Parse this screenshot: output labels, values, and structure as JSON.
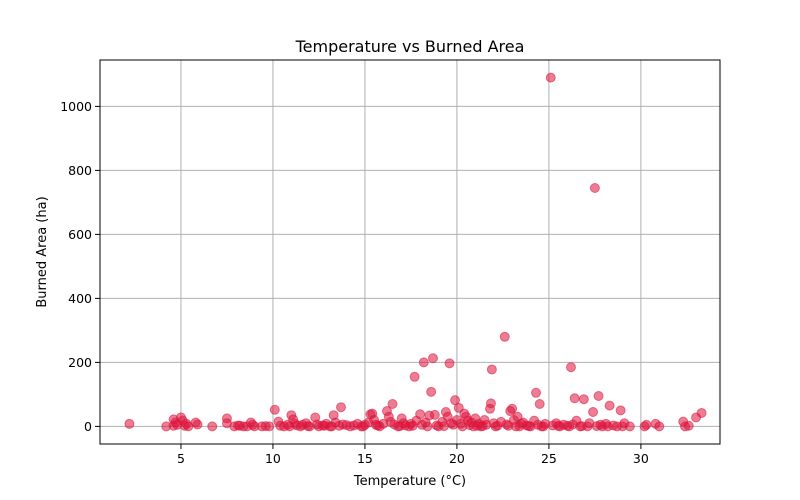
{
  "chart_data": {
    "type": "scatter",
    "title": "Temperature vs Burned Area",
    "xlabel": "Temperature (°C)",
    "ylabel": "Burned Area (ha)",
    "xlim": [
      0.6,
      34.3
    ],
    "ylim": [
      -55,
      1145
    ],
    "x_ticks": [
      5,
      10,
      15,
      20,
      25,
      30
    ],
    "y_ticks": [
      0,
      200,
      400,
      600,
      800,
      1000
    ],
    "grid": true,
    "legend": "none",
    "color": "#dc143c",
    "alpha": 0.55,
    "points": [
      [
        2.2,
        8
      ],
      [
        4.2,
        0
      ],
      [
        4.6,
        2
      ],
      [
        4.6,
        22
      ],
      [
        4.7,
        12
      ],
      [
        4.8,
        5
      ],
      [
        5.0,
        28
      ],
      [
        5.1,
        18
      ],
      [
        5.2,
        2
      ],
      [
        5.3,
        8
      ],
      [
        5.4,
        0
      ],
      [
        5.8,
        12
      ],
      [
        5.9,
        6
      ],
      [
        6.7,
        0
      ],
      [
        7.5,
        25
      ],
      [
        7.5,
        10
      ],
      [
        7.9,
        0
      ],
      [
        8.1,
        3
      ],
      [
        8.2,
        2
      ],
      [
        8.4,
        0
      ],
      [
        8.8,
        12
      ],
      [
        8.9,
        5
      ],
      [
        9.0,
        0
      ],
      [
        9.4,
        0
      ],
      [
        9.8,
        0
      ],
      [
        10.1,
        52
      ],
      [
        10.3,
        15
      ],
      [
        10.4,
        2
      ],
      [
        10.6,
        0
      ],
      [
        10.8,
        5
      ],
      [
        11.0,
        35
      ],
      [
        11.1,
        22
      ],
      [
        11.2,
        8
      ],
      [
        11.3,
        3
      ],
      [
        11.5,
        0
      ],
      [
        11.6,
        5
      ],
      [
        11.8,
        10
      ],
      [
        12.0,
        0
      ],
      [
        12.3,
        28
      ],
      [
        12.4,
        6
      ],
      [
        12.5,
        0
      ],
      [
        12.7,
        3
      ],
      [
        12.9,
        8
      ],
      [
        13.1,
        0
      ],
      [
        13.3,
        35
      ],
      [
        13.4,
        12
      ],
      [
        13.6,
        2
      ],
      [
        13.7,
        60
      ],
      [
        13.8,
        6
      ],
      [
        14.0,
        4
      ],
      [
        14.2,
        0
      ],
      [
        14.4,
        3
      ],
      [
        14.6,
        8
      ],
      [
        14.8,
        0
      ],
      [
        15.0,
        5
      ],
      [
        15.2,
        12
      ],
      [
        15.3,
        38
      ],
      [
        15.4,
        40
      ],
      [
        15.5,
        20
      ],
      [
        15.6,
        5
      ],
      [
        15.8,
        0
      ],
      [
        16.0,
        8
      ],
      [
        16.2,
        48
      ],
      [
        16.3,
        30
      ],
      [
        16.4,
        14
      ],
      [
        16.5,
        70
      ],
      [
        16.6,
        6
      ],
      [
        16.8,
        0
      ],
      [
        17.0,
        25
      ],
      [
        17.1,
        10
      ],
      [
        17.2,
        3
      ],
      [
        17.4,
        0
      ],
      [
        17.5,
        8
      ],
      [
        17.7,
        155
      ],
      [
        17.8,
        18
      ],
      [
        18.0,
        38
      ],
      [
        18.1,
        5
      ],
      [
        18.2,
        200
      ],
      [
        18.3,
        12
      ],
      [
        18.5,
        34
      ],
      [
        18.6,
        108
      ],
      [
        18.7,
        213
      ],
      [
        18.8,
        36
      ],
      [
        18.9,
        3
      ],
      [
        19.0,
        0
      ],
      [
        19.2,
        14
      ],
      [
        19.4,
        45
      ],
      [
        19.5,
        30
      ],
      [
        19.6,
        197
      ],
      [
        19.7,
        10
      ],
      [
        19.8,
        5
      ],
      [
        19.9,
        82
      ],
      [
        20.0,
        20
      ],
      [
        20.1,
        58
      ],
      [
        20.2,
        8
      ],
      [
        20.3,
        0
      ],
      [
        20.4,
        40
      ],
      [
        20.5,
        30
      ],
      [
        20.6,
        18
      ],
      [
        20.7,
        4
      ],
      [
        20.8,
        12
      ],
      [
        21.0,
        25
      ],
      [
        21.1,
        2
      ],
      [
        21.2,
        8
      ],
      [
        21.3,
        0
      ],
      [
        21.5,
        20
      ],
      [
        21.6,
        5
      ],
      [
        21.8,
        55
      ],
      [
        21.85,
        72
      ],
      [
        21.9,
        178
      ],
      [
        22.0,
        10
      ],
      [
        22.2,
        2
      ],
      [
        22.4,
        14
      ],
      [
        22.6,
        280
      ],
      [
        22.7,
        6
      ],
      [
        22.9,
        48
      ],
      [
        23.0,
        55
      ],
      [
        23.1,
        20
      ],
      [
        23.2,
        0
      ],
      [
        23.3,
        30
      ],
      [
        23.5,
        8
      ],
      [
        23.6,
        12
      ],
      [
        23.8,
        3
      ],
      [
        24.0,
        0
      ],
      [
        24.2,
        18
      ],
      [
        24.3,
        105
      ],
      [
        24.4,
        5
      ],
      [
        24.5,
        70
      ],
      [
        24.6,
        0
      ],
      [
        24.8,
        8
      ],
      [
        25.1,
        1090
      ],
      [
        25.2,
        3
      ],
      [
        25.4,
        10
      ],
      [
        25.6,
        0
      ],
      [
        25.8,
        5
      ],
      [
        26.0,
        2
      ],
      [
        26.2,
        185
      ],
      [
        26.3,
        6
      ],
      [
        26.4,
        88
      ],
      [
        26.5,
        18
      ],
      [
        26.7,
        0
      ],
      [
        26.9,
        85
      ],
      [
        27.2,
        10
      ],
      [
        27.4,
        45
      ],
      [
        27.5,
        745
      ],
      [
        27.7,
        95
      ],
      [
        27.8,
        5
      ],
      [
        27.9,
        0
      ],
      [
        28.1,
        8
      ],
      [
        28.3,
        65
      ],
      [
        28.5,
        3
      ],
      [
        28.7,
        0
      ],
      [
        28.9,
        50
      ],
      [
        29.1,
        10
      ],
      [
        29.4,
        0
      ],
      [
        30.2,
        0
      ],
      [
        30.3,
        5
      ],
      [
        30.8,
        8
      ],
      [
        31.0,
        0
      ],
      [
        32.3,
        15
      ],
      [
        32.4,
        0
      ],
      [
        32.6,
        2
      ],
      [
        33.0,
        28
      ],
      [
        33.3,
        42
      ],
      [
        12.8,
        2
      ],
      [
        14.9,
        0
      ],
      [
        15.7,
        3
      ],
      [
        16.9,
        1
      ],
      [
        17.6,
        2
      ],
      [
        18.4,
        0
      ],
      [
        19.3,
        1
      ],
      [
        20.9,
        0
      ],
      [
        21.4,
        1
      ],
      [
        22.1,
        0
      ],
      [
        22.8,
        2
      ],
      [
        23.4,
        0
      ],
      [
        23.9,
        1
      ],
      [
        24.7,
        0
      ],
      [
        25.5,
        2
      ],
      [
        26.1,
        0
      ],
      [
        26.8,
        1
      ],
      [
        27.1,
        0
      ],
      [
        27.6,
        1
      ],
      [
        28.2,
        0
      ],
      [
        29.0,
        0
      ],
      [
        13.2,
        0
      ],
      [
        11.9,
        1
      ],
      [
        10.9,
        0
      ],
      [
        9.6,
        1
      ],
      [
        8.6,
        0
      ]
    ]
  }
}
